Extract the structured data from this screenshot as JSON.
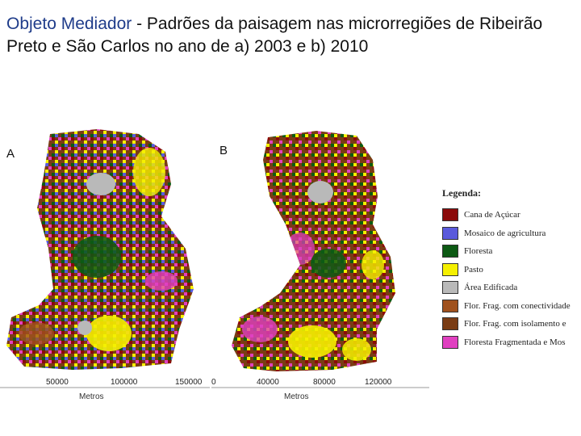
{
  "title": {
    "accent": "Objeto Mediador",
    "rest": " - Padrões da paisagem nas microrregiões de Ribeirão Preto e São Carlos no ano de a) 2003 e b) 2010"
  },
  "maps": [
    {
      "letter": "A",
      "scale_ticks": [
        "50000",
        "100000",
        "150000"
      ],
      "scale_unit": "Metros"
    },
    {
      "letter": "B",
      "scale_ticks": [
        "0",
        "40000",
        "80000",
        "120000"
      ],
      "scale_unit": "Metros"
    }
  ],
  "legend": {
    "title": "Legenda:",
    "items": [
      {
        "label": "Cana de Açúcar",
        "color": "#8b0a0a"
      },
      {
        "label": "Mosaico de agricultura",
        "color": "#5a5adc"
      },
      {
        "label": "Floresta",
        "color": "#0d5a14"
      },
      {
        "label": "Pasto",
        "color": "#f5f000"
      },
      {
        "label": "Área Edificada",
        "color": "#b9b9b9"
      },
      {
        "label": "Flor. Frag. com conectividade",
        "color": "#a0521e"
      },
      {
        "label": "Flor. Frag. com isolamento e",
        "color": "#7a3c14"
      },
      {
        "label": "Floresta Fragmentada e Mos",
        "color": "#e040c0"
      }
    ]
  }
}
